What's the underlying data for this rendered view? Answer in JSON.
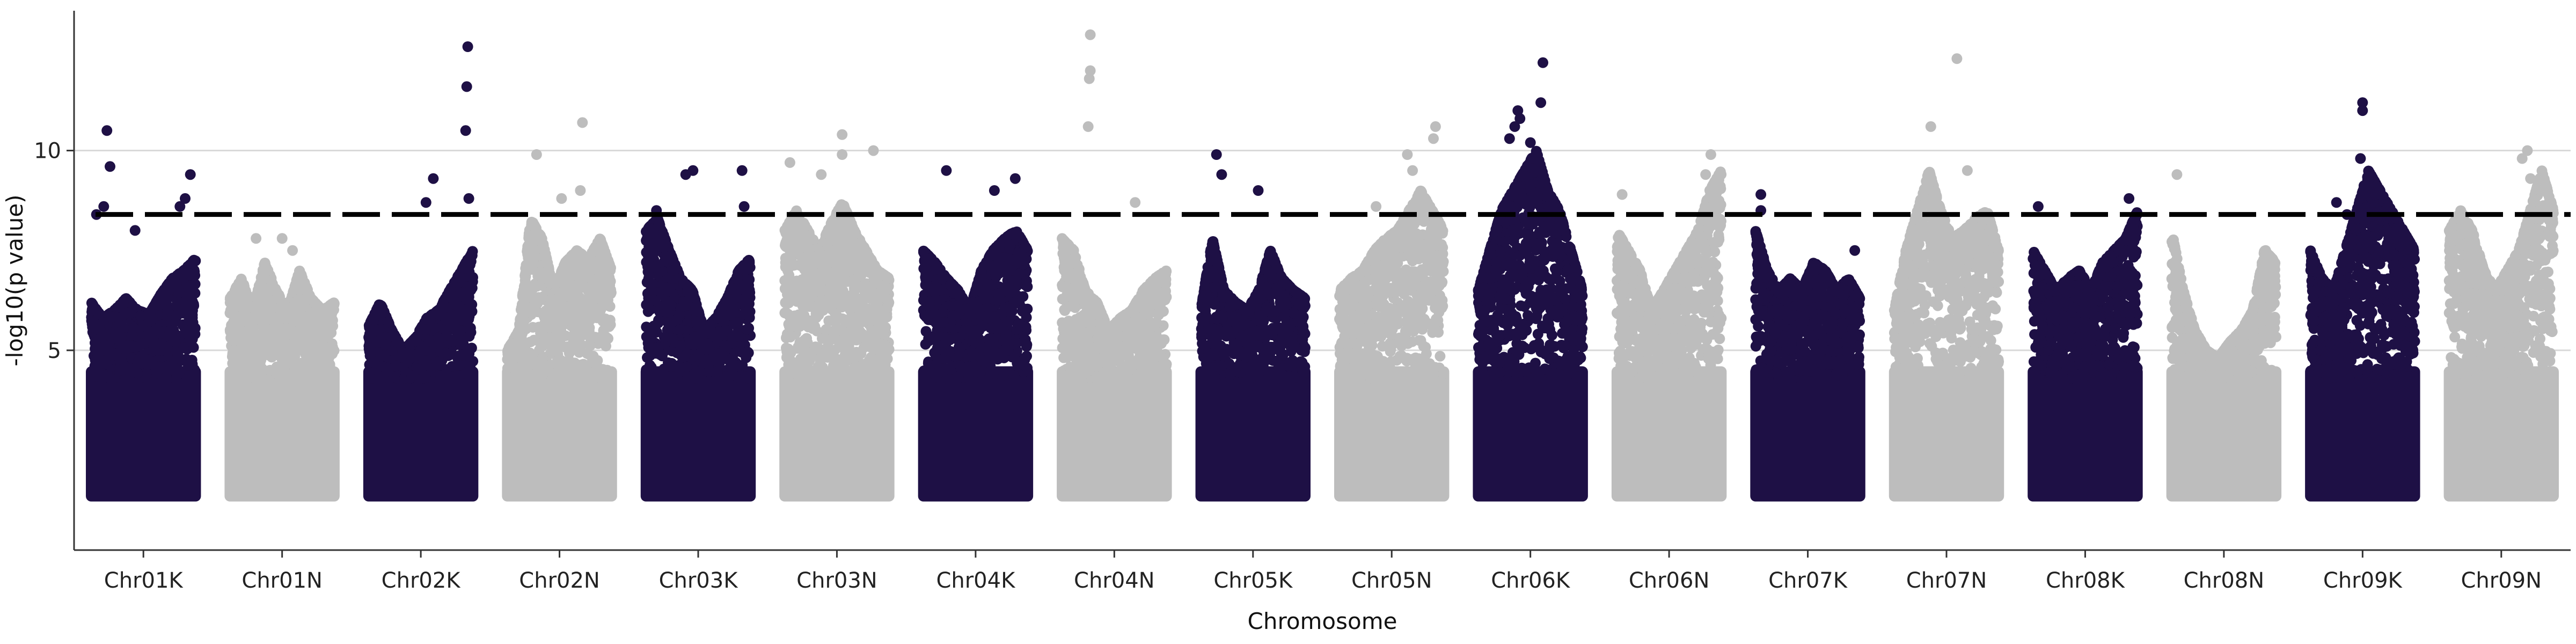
{
  "chart_data": {
    "type": "scatter",
    "title": "",
    "xlabel": "Chromosome",
    "ylabel": "-log10(p value)",
    "ylim": [
      0,
      13.5
    ],
    "y_ticks": [
      5,
      10
    ],
    "grid": "horizontal major lines",
    "legend": "none",
    "threshold": 8.4,
    "colors": {
      "dark": "#1e1045",
      "light": "#bdbdbd"
    },
    "categories": [
      "Chr01K",
      "Chr01N",
      "Chr02K",
      "Chr02N",
      "Chr03K",
      "Chr03N",
      "Chr04K",
      "Chr04N",
      "Chr05K",
      "Chr05N",
      "Chr06K",
      "Chr06N",
      "Chr07K",
      "Chr07N",
      "Chr08K",
      "Chr08N",
      "Chr09K",
      "Chr09N"
    ],
    "series": [
      {
        "chrom": "Chr01K",
        "color": "dark",
        "envelope": [
          6.2,
          5.8,
          6.0,
          6.3,
          6.0,
          5.9,
          6.4,
          6.8,
          7.0,
          7.3
        ],
        "peaks": [
          [
            0.05,
            8.4
          ],
          [
            0.12,
            8.6
          ],
          [
            0.15,
            10.5
          ],
          [
            0.18,
            9.6
          ],
          [
            0.42,
            8.0
          ],
          [
            0.85,
            8.6
          ],
          [
            0.9,
            8.8
          ],
          [
            0.95,
            9.4
          ]
        ]
      },
      {
        "chrom": "Chr01N",
        "color": "light",
        "envelope": [
          6.3,
          6.8,
          6.0,
          7.2,
          6.5,
          6.0,
          7.0,
          6.3,
          6.0,
          6.2
        ],
        "peaks": [
          [
            0.25,
            7.8
          ],
          [
            0.5,
            7.8
          ],
          [
            0.6,
            7.5
          ]
        ]
      },
      {
        "chrom": "Chr02K",
        "color": "dark",
        "envelope": [
          5.6,
          6.2,
          5.5,
          5.0,
          5.3,
          5.8,
          6.0,
          6.5,
          7.0,
          7.5
        ],
        "peaks": [
          [
            0.55,
            8.7
          ],
          [
            0.62,
            9.3
          ],
          [
            0.93,
            10.5
          ],
          [
            0.94,
            11.6
          ],
          [
            0.95,
            12.6
          ],
          [
            0.96,
            8.8
          ]
        ]
      },
      {
        "chrom": "Chr02N",
        "color": "light",
        "envelope": [
          5.0,
          5.5,
          8.3,
          7.8,
          6.5,
          7.2,
          7.5,
          7.3,
          7.8,
          7.0
        ],
        "peaks": [
          [
            0.28,
            9.9
          ],
          [
            0.52,
            8.8
          ],
          [
            0.72,
            10.7
          ],
          [
            0.7,
            9.0
          ]
        ]
      },
      {
        "chrom": "Chr03K",
        "color": "dark",
        "envelope": [
          8.0,
          8.3,
          7.5,
          6.8,
          6.5,
          5.5,
          5.8,
          6.3,
          7.0,
          7.3
        ],
        "peaks": [
          [
            0.1,
            8.5
          ],
          [
            0.38,
            9.4
          ],
          [
            0.45,
            9.5
          ],
          [
            0.92,
            9.5
          ],
          [
            0.94,
            8.6
          ]
        ]
      },
      {
        "chrom": "Chr03N",
        "color": "light",
        "envelope": [
          8.0,
          8.5,
          8.0,
          7.5,
          8.2,
          8.7,
          8.0,
          7.5,
          7.0,
          6.8
        ],
        "peaks": [
          [
            0.05,
            9.7
          ],
          [
            0.35,
            9.4
          ],
          [
            0.55,
            9.9
          ],
          [
            0.55,
            10.4
          ],
          [
            0.85,
            10.0
          ]
        ]
      },
      {
        "chrom": "Chr04K",
        "color": "dark",
        "envelope": [
          7.5,
          7.2,
          6.8,
          6.5,
          6.0,
          7.0,
          7.5,
          7.8,
          8.0,
          7.5
        ],
        "peaks": [
          [
            0.22,
            9.5
          ],
          [
            0.68,
            9.0
          ],
          [
            0.88,
            9.3
          ]
        ]
      },
      {
        "chrom": "Chr04N",
        "color": "light",
        "envelope": [
          7.8,
          7.5,
          6.5,
          6.2,
          5.5,
          5.8,
          6.0,
          6.5,
          6.8,
          7.0
        ],
        "peaks": [
          [
            0.25,
            10.6
          ],
          [
            0.26,
            11.8
          ],
          [
            0.27,
            12.0
          ],
          [
            0.27,
            12.9
          ],
          [
            0.7,
            8.7
          ]
        ]
      },
      {
        "chrom": "Chr05K",
        "color": "dark",
        "envelope": [
          6.0,
          7.8,
          6.5,
          6.2,
          6.0,
          6.5,
          7.5,
          6.8,
          6.5,
          6.3
        ],
        "peaks": [
          [
            0.15,
            9.9
          ],
          [
            0.2,
            9.4
          ],
          [
            0.55,
            9.0
          ]
        ]
      },
      {
        "chrom": "Chr05N",
        "color": "light",
        "envelope": [
          6.5,
          6.8,
          7.0,
          7.5,
          7.8,
          8.0,
          8.5,
          9.0,
          8.5,
          8.0
        ],
        "peaks": [
          [
            0.65,
            9.9
          ],
          [
            0.7,
            9.5
          ],
          [
            0.9,
            10.3
          ],
          [
            0.92,
            10.6
          ],
          [
            0.35,
            8.6
          ]
        ]
      },
      {
        "chrom": "Chr06K",
        "color": "dark",
        "envelope": [
          6.5,
          7.5,
          8.5,
          9.0,
          9.5,
          10.0,
          9.0,
          8.5,
          7.5,
          6.5
        ],
        "peaks": [
          [
            0.3,
            10.3
          ],
          [
            0.35,
            10.6
          ],
          [
            0.38,
            11.0
          ],
          [
            0.4,
            10.8
          ],
          [
            0.5,
            10.2
          ],
          [
            0.62,
            12.2
          ],
          [
            0.6,
            11.2
          ]
        ]
      },
      {
        "chrom": "Chr06N",
        "color": "light",
        "envelope": [
          8.0,
          7.5,
          7.0,
          6.0,
          6.5,
          7.0,
          7.5,
          8.0,
          9.0,
          9.5
        ],
        "peaks": [
          [
            0.05,
            8.9
          ],
          [
            0.9,
            9.9
          ],
          [
            0.85,
            9.4
          ]
        ]
      },
      {
        "chrom": "Chr07K",
        "color": "dark",
        "envelope": [
          8.0,
          7.0,
          6.5,
          6.8,
          6.5,
          7.2,
          7.0,
          6.5,
          6.8,
          6.3
        ],
        "peaks": [
          [
            0.05,
            8.9
          ],
          [
            0.05,
            8.5
          ],
          [
            0.95,
            7.5
          ]
        ]
      },
      {
        "chrom": "Chr07N",
        "color": "light",
        "envelope": [
          6.0,
          7.5,
          8.5,
          9.5,
          8.5,
          7.8,
          8.0,
          8.3,
          8.5,
          7.5
        ],
        "peaks": [
          [
            0.35,
            10.6
          ],
          [
            0.6,
            12.3
          ],
          [
            0.7,
            9.5
          ]
        ]
      },
      {
        "chrom": "Chr08K",
        "color": "dark",
        "envelope": [
          7.5,
          7.0,
          6.5,
          6.8,
          7.0,
          6.5,
          7.2,
          7.5,
          7.8,
          8.5
        ],
        "peaks": [
          [
            0.05,
            8.6
          ],
          [
            0.92,
            8.8
          ]
        ]
      },
      {
        "chrom": "Chr08N",
        "color": "light",
        "envelope": [
          8.0,
          6.5,
          5.5,
          5.0,
          4.8,
          5.2,
          5.5,
          6.0,
          7.5,
          7.2
        ],
        "peaks": [
          [
            0.05,
            9.4
          ],
          [
            0.9,
            7.5
          ]
        ]
      },
      {
        "chrom": "Chr09K",
        "color": "dark",
        "envelope": [
          7.5,
          6.8,
          6.5,
          7.5,
          8.5,
          9.5,
          9.0,
          8.5,
          8.0,
          7.5
        ],
        "peaks": [
          [
            0.25,
            8.7
          ],
          [
            0.35,
            8.4
          ],
          [
            0.5,
            11.2
          ],
          [
            0.5,
            11.0
          ],
          [
            0.48,
            9.8
          ],
          [
            0.6,
            8.7
          ]
        ]
      },
      {
        "chrom": "Chr09N",
        "color": "light",
        "envelope": [
          8.0,
          8.5,
          8.0,
          7.0,
          6.5,
          7.0,
          7.5,
          8.5,
          9.5,
          8.5
        ],
        "peaks": [
          [
            0.7,
            9.8
          ],
          [
            0.75,
            10.0
          ],
          [
            0.78,
            9.3
          ]
        ]
      }
    ]
  }
}
